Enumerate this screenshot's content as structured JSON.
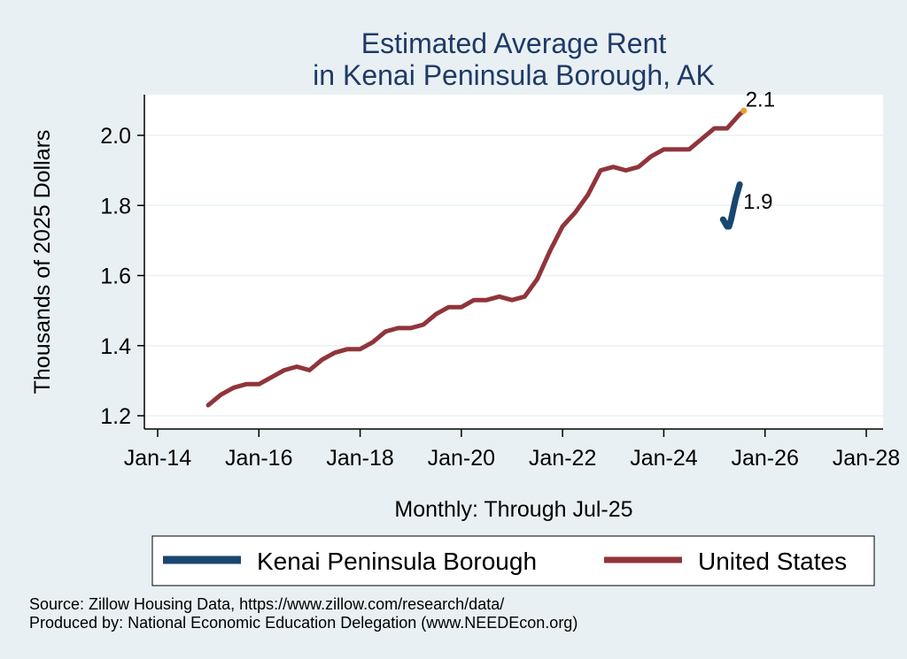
{
  "chart_data": {
    "type": "line",
    "title_lines": [
      "Estimated Average Rent",
      "in Kenai Peninsula Borough, AK"
    ],
    "ylabel": "Thousands of 2025 Dollars",
    "xlabel": "Monthly: Through Jul-25",
    "ylim": [
      1.2,
      2.12
    ],
    "yticks": [
      1.2,
      1.4,
      1.6,
      1.8,
      2.0
    ],
    "ytick_labels": [
      "1.2",
      "1.4",
      "1.6",
      "1.8",
      "2.0"
    ],
    "xlim": [
      2014,
      2028
    ],
    "xticks": [
      2014,
      2016,
      2018,
      2020,
      2022,
      2024,
      2026,
      2028
    ],
    "xtick_labels": [
      "Jan-14",
      "Jan-16",
      "Jan-18",
      "Jan-20",
      "Jan-22",
      "Jan-24",
      "Jan-26",
      "Jan-28"
    ],
    "series": [
      {
        "name": "Kenai Peninsula Borough",
        "color": "#1a476f",
        "end_label": "1.9",
        "points": [
          [
            2025.17,
            1.76
          ],
          [
            2025.25,
            1.74
          ],
          [
            2025.29,
            1.74
          ],
          [
            2025.33,
            1.76
          ],
          [
            2025.42,
            1.82
          ],
          [
            2025.5,
            1.86
          ]
        ]
      },
      {
        "name": "United States",
        "color": "#90353b",
        "end_label": "2.1",
        "end_marker_color": "#e8a02a",
        "points": [
          [
            2015.0,
            1.23
          ],
          [
            2015.25,
            1.26
          ],
          [
            2015.5,
            1.28
          ],
          [
            2015.75,
            1.29
          ],
          [
            2016.0,
            1.29
          ],
          [
            2016.25,
            1.31
          ],
          [
            2016.5,
            1.33
          ],
          [
            2016.75,
            1.34
          ],
          [
            2017.0,
            1.33
          ],
          [
            2017.25,
            1.36
          ],
          [
            2017.5,
            1.38
          ],
          [
            2017.75,
            1.39
          ],
          [
            2018.0,
            1.39
          ],
          [
            2018.25,
            1.41
          ],
          [
            2018.5,
            1.44
          ],
          [
            2018.75,
            1.45
          ],
          [
            2019.0,
            1.45
          ],
          [
            2019.25,
            1.46
          ],
          [
            2019.5,
            1.49
          ],
          [
            2019.75,
            1.51
          ],
          [
            2020.0,
            1.51
          ],
          [
            2020.25,
            1.53
          ],
          [
            2020.5,
            1.53
          ],
          [
            2020.75,
            1.54
          ],
          [
            2021.0,
            1.53
          ],
          [
            2021.25,
            1.54
          ],
          [
            2021.5,
            1.59
          ],
          [
            2021.75,
            1.67
          ],
          [
            2022.0,
            1.74
          ],
          [
            2022.25,
            1.78
          ],
          [
            2022.5,
            1.83
          ],
          [
            2022.75,
            1.9
          ],
          [
            2023.0,
            1.91
          ],
          [
            2023.25,
            1.9
          ],
          [
            2023.5,
            1.91
          ],
          [
            2023.75,
            1.94
          ],
          [
            2024.0,
            1.96
          ],
          [
            2024.25,
            1.96
          ],
          [
            2024.5,
            1.96
          ],
          [
            2024.75,
            1.99
          ],
          [
            2025.0,
            2.02
          ],
          [
            2025.25,
            2.02
          ],
          [
            2025.5,
            2.06
          ],
          [
            2025.58,
            2.07
          ]
        ]
      }
    ]
  },
  "legend": {
    "items": [
      {
        "label": "Kenai Peninsula Borough",
        "color": "#1a476f"
      },
      {
        "label": "United States",
        "color": "#90353b"
      }
    ]
  },
  "footer": {
    "source": "Source: Zillow Housing Data, https://www.zillow.com/research/data/",
    "produced": "Produced by: National Economic Education Delegation (www.NEEDEcon.org)"
  }
}
